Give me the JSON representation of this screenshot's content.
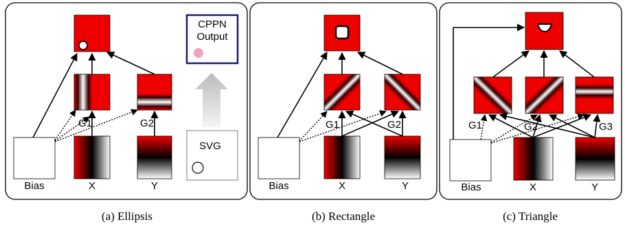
{
  "panels": [
    {
      "inputs": [
        "Bias",
        "X",
        "Y"
      ],
      "gates": [
        "G1",
        "G2"
      ],
      "legend": {
        "output": [
          "CPPN",
          "Output"
        ],
        "svg": "SVG"
      },
      "caption": "(a) Ellipsis"
    },
    {
      "inputs": [
        "Bias",
        "X",
        "Y"
      ],
      "gates": [
        "G1",
        "G2"
      ],
      "caption": "(b) Rectangle"
    },
    {
      "inputs": [
        "Bias",
        "X",
        "Y"
      ],
      "gates": [
        "G1",
        "G2",
        "G3"
      ],
      "caption": "(c) Triangle"
    }
  ]
}
